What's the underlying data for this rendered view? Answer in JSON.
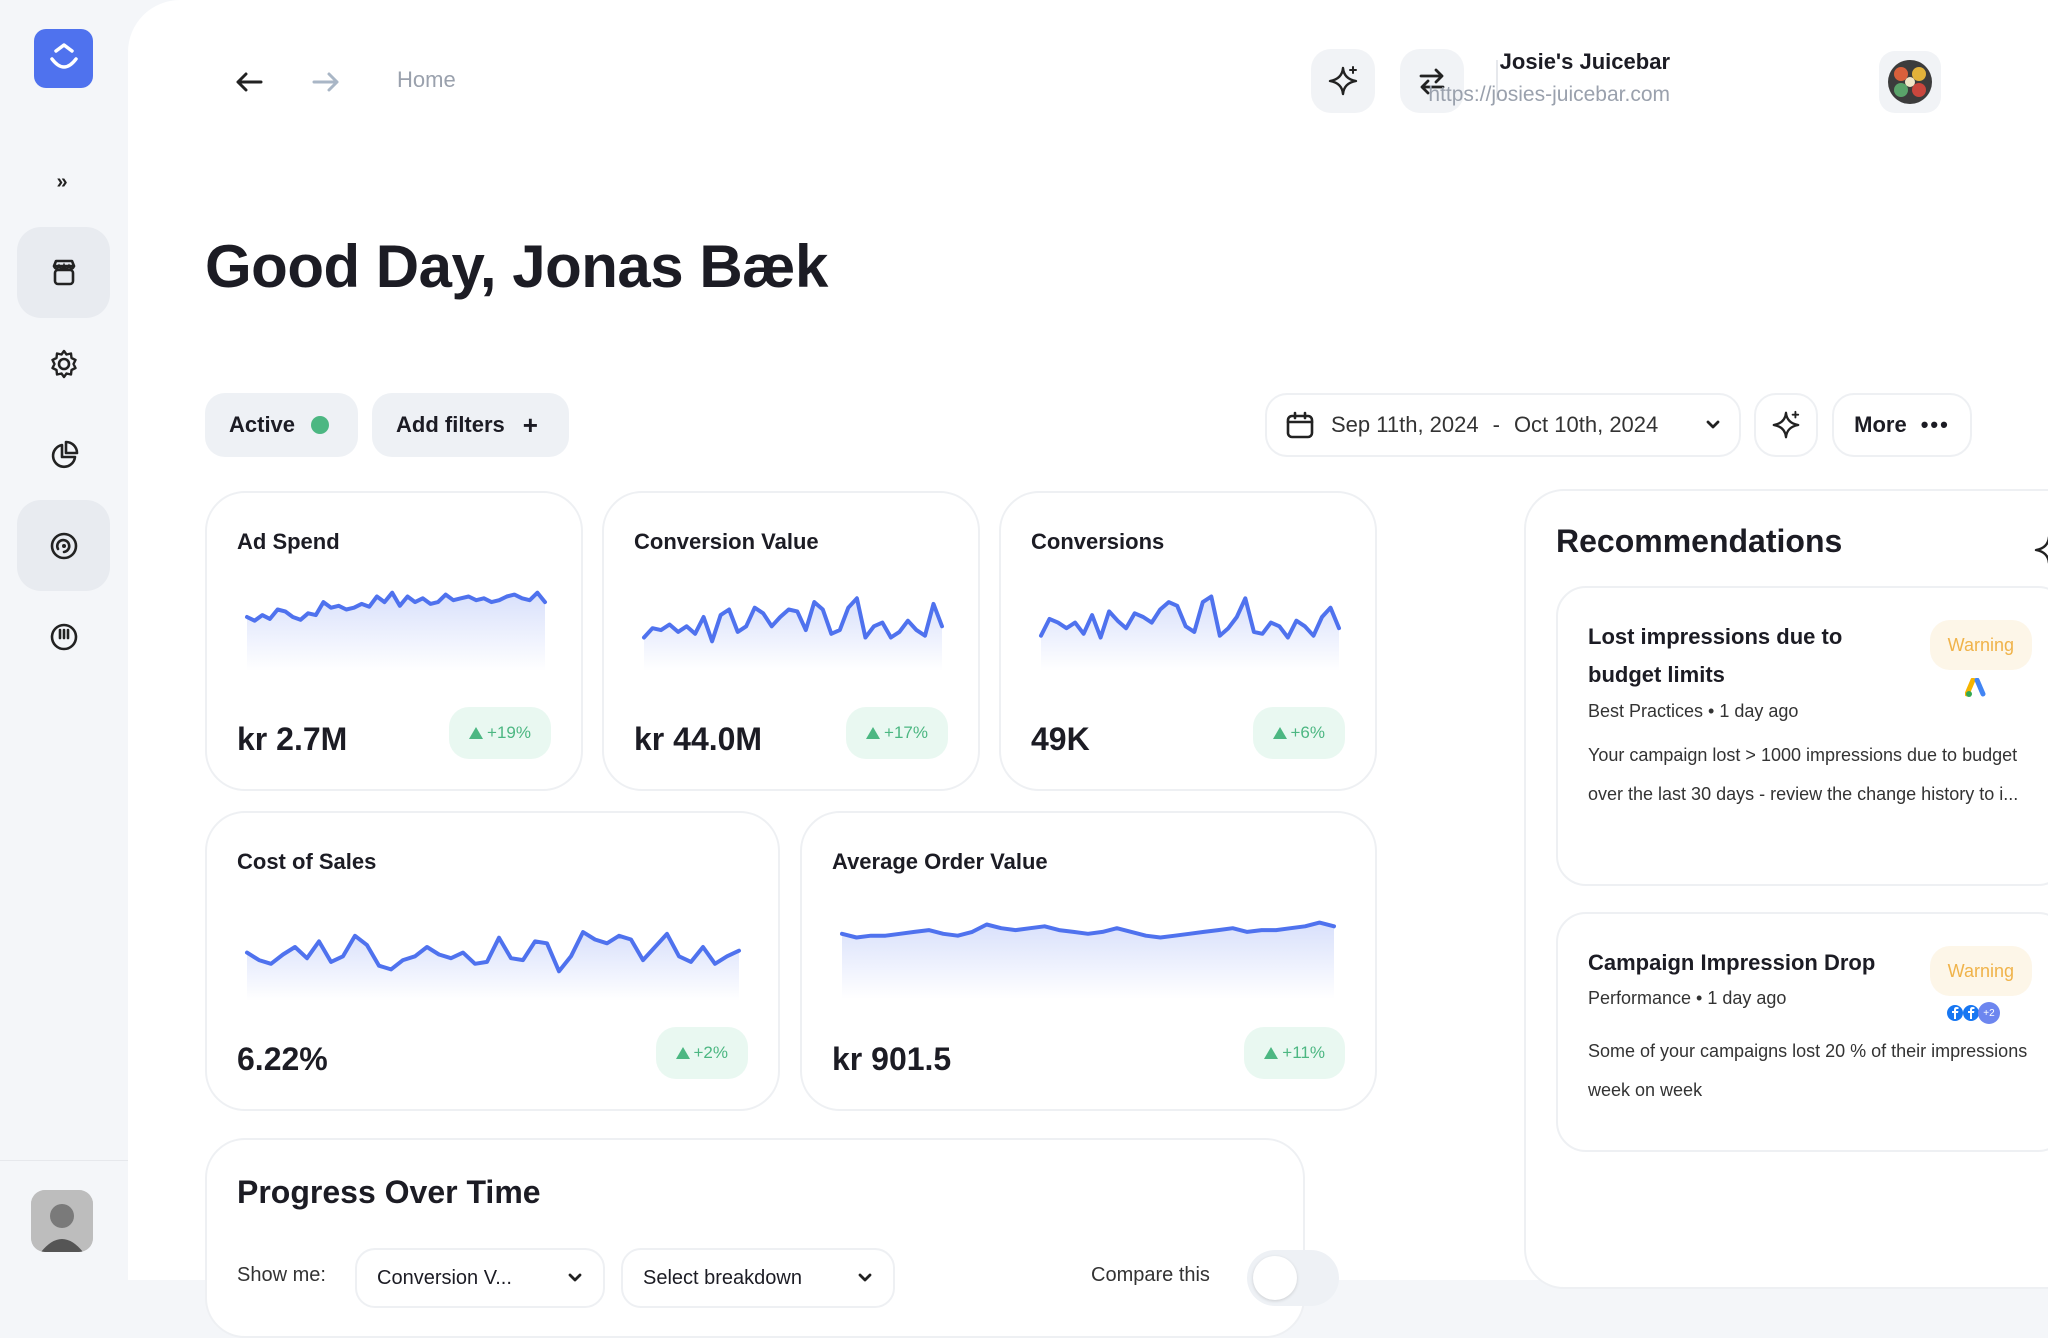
{
  "header": {
    "breadcrumb": "Home",
    "account_name": "Josie's Juicebar",
    "account_url": "https://josies-juicebar.com"
  },
  "greeting": "Good Day, Jonas Bæk",
  "filters": {
    "active_label": "Active",
    "add_filters_label": "Add filters",
    "date_start": "Sep 11th, 2024",
    "date_separator": "-",
    "date_end": "Oct 10th, 2024",
    "more_label": "More"
  },
  "metrics": [
    {
      "title": "Ad Spend",
      "value": "kr 2.7M",
      "change": "+19%",
      "trend": [
        30,
        34,
        28,
        32,
        22,
        24,
        30,
        33,
        26,
        28,
        14,
        20,
        18,
        22,
        20,
        16,
        19,
        8,
        14,
        4,
        18,
        8,
        14,
        10,
        16,
        14,
        6,
        12,
        10,
        8,
        12,
        10,
        14,
        12,
        8,
        6,
        10,
        12,
        4,
        14
      ]
    },
    {
      "title": "Conversion Value",
      "value": "kr 44.0M",
      "change": "+17%",
      "trend": [
        52,
        42,
        44,
        38,
        46,
        40,
        48,
        30,
        56,
        28,
        22,
        46,
        40,
        20,
        26,
        40,
        30,
        22,
        24,
        44,
        14,
        22,
        48,
        44,
        20,
        10,
        52,
        40,
        36,
        52,
        46,
        34,
        44,
        50,
        16,
        40
      ]
    },
    {
      "title": "Conversions",
      "value": "49K",
      "change": "+6%",
      "trend": [
        50,
        32,
        36,
        42,
        36,
        48,
        28,
        52,
        24,
        34,
        42,
        26,
        30,
        36,
        22,
        14,
        18,
        40,
        46,
        14,
        8,
        50,
        42,
        30,
        10,
        46,
        48,
        36,
        40,
        52,
        34,
        40,
        50,
        30,
        20,
        42
      ]
    },
    {
      "title": "Cost of Sales",
      "value": "6.22%",
      "change": "+2%",
      "trend": [
        36,
        44,
        48,
        38,
        30,
        42,
        24,
        46,
        40,
        18,
        28,
        50,
        54,
        44,
        40,
        30,
        38,
        42,
        36,
        48,
        46,
        20,
        42,
        44,
        24,
        26,
        56,
        40,
        14,
        22,
        26,
        18,
        22,
        44,
        30,
        16,
        40,
        46,
        30,
        48,
        40,
        34
      ]
    },
    {
      "title": "Average Order Value",
      "value": "kr 901.5",
      "change": "+11%",
      "trend": [
        18,
        22,
        20,
        20,
        18,
        16,
        14,
        18,
        20,
        16,
        8,
        12,
        14,
        12,
        10,
        14,
        16,
        18,
        16,
        12,
        16,
        20,
        22,
        20,
        18,
        16,
        14,
        12,
        16,
        14,
        14,
        12,
        10,
        6,
        10
      ]
    }
  ],
  "recommendations": {
    "title": "Recommendations",
    "items": [
      {
        "title": "Lost impressions due to budget limits",
        "badge": "Warning",
        "meta": "Best Practices • 1 day ago",
        "body": "Your campaign lost > 1000 impressions due to budget over the last 30 days - review the change history to i..."
      },
      {
        "title": "Campaign Impression Drop",
        "badge": "Warning",
        "meta": "Performance • 1 day ago",
        "body": "Some of your campaigns lost 20 % of their impressions week on week",
        "extra_count": "+2"
      }
    ]
  },
  "progress": {
    "title": "Progress Over Time",
    "show_me_label": "Show me:",
    "metric_select": "Conversion V...",
    "breakdown_select": "Select breakdown",
    "compare_label": "Compare this"
  },
  "colors": {
    "accent": "#4f72ee",
    "positive": "#4cb782",
    "warning": "#f0b34a"
  }
}
